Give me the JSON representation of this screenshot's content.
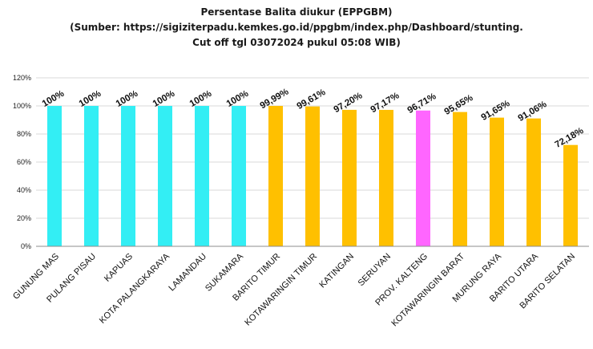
{
  "chart_data": {
    "type": "bar",
    "title": "Persentase Balita diukur (EPPGBM)",
    "subtitle_lines": [
      "(Sumber: https://sigiziterpadu.kemkes.go.id/ppgbm/index.php/Dashboard/stunting.",
      "Cut off tgl 03072024 pukul 05:08 WIB)"
    ],
    "xlabel": "",
    "ylabel": "",
    "ylim": [
      0,
      120
    ],
    "yticks": [
      0,
      20,
      40,
      60,
      80,
      100,
      120
    ],
    "ytick_labels": [
      "0%",
      "20%",
      "40%",
      "60%",
      "80%",
      "100%",
      "120%"
    ],
    "grid": true,
    "categories": [
      "GUNUNG MAS",
      "PULANG PISAU",
      "KAPUAS",
      "KOTA PALANGKARAYA",
      "LAMANDAU",
      "SUKAMARA",
      "BARITO TIMUR",
      "KOTAWARINGIN TIMUR",
      "KATINGAN",
      "SERUYAN",
      "PROV. KALTENG",
      "KOTAWARINGIN BARAT",
      "MURUNG RAYA",
      "BARITO UTARA",
      "BARITO SELATAN"
    ],
    "values": [
      100,
      100,
      100,
      100,
      100,
      100,
      99.99,
      99.61,
      97.2,
      97.17,
      96.71,
      95.65,
      91.65,
      91.06,
      72.18
    ],
    "data_labels": [
      "100%",
      "100%",
      "100%",
      "100%",
      "100%",
      "100%",
      "99,99%",
      "99,61%",
      "97,20%",
      "97,17%",
      "96,71%",
      "95,65%",
      "91,65%",
      "91,06%",
      "72,18%"
    ],
    "bar_colors": [
      "#33eef4",
      "#33eef4",
      "#33eef4",
      "#33eef4",
      "#33eef4",
      "#33eef4",
      "#ffc000",
      "#ffc000",
      "#ffc000",
      "#ffc000",
      "#ff66ff",
      "#ffc000",
      "#ffc000",
      "#ffc000",
      "#ffc000"
    ],
    "colors": {
      "gridline": "#d9d9d9",
      "axis": "#8c8c8c"
    }
  }
}
